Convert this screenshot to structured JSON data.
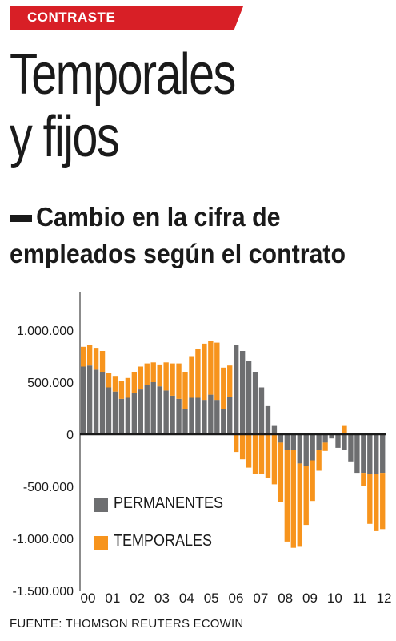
{
  "header": {
    "tag": "CONTRASTE",
    "title": "Temporales\ny fijos",
    "subtitle": "Cambio en la cifra de empleados según el contrato"
  },
  "source": "FUENTE: THOMSON REUTERS ECOWIN",
  "colors": {
    "tag": "#d81f26",
    "permanentes": "#6d6e70",
    "temporales": "#f7941d"
  },
  "chart_data": {
    "type": "bar",
    "stacked": true,
    "title": "",
    "xlabel": "",
    "ylabel": "",
    "ylim": [
      -1500000,
      1300000
    ],
    "yticks": [
      1000000,
      500000,
      0,
      -500000,
      -1000000,
      -1500000
    ],
    "ytick_labels": [
      "1.000.000",
      "500.000",
      "0",
      "-500.000",
      "-1.000.000",
      "-1.500.000"
    ],
    "xtick_labels": [
      "00",
      "01",
      "02",
      "03",
      "04",
      "05",
      "06",
      "07",
      "08",
      "09",
      "10",
      "11",
      "12"
    ],
    "legend": [
      "PERMANENTES",
      "TEMPORALES"
    ],
    "legend_position": "bottom-left",
    "grid": false,
    "series": [
      {
        "name": "PERMANENTES",
        "values": [
          650000,
          660000,
          620000,
          600000,
          450000,
          410000,
          340000,
          350000,
          400000,
          430000,
          470000,
          500000,
          460000,
          420000,
          370000,
          340000,
          240000,
          350000,
          350000,
          330000,
          380000,
          330000,
          240000,
          360000,
          860000,
          800000,
          700000,
          600000,
          450000,
          270000,
          80000,
          -80000,
          -150000,
          -150000,
          -280000,
          -300000,
          -250000,
          -150000,
          -80000,
          -40000,
          -130000,
          -150000,
          -260000,
          -370000,
          -370000,
          -380000,
          -380000,
          -370000
        ]
      },
      {
        "name": "TEMPORALES",
        "values": [
          190000,
          200000,
          210000,
          200000,
          140000,
          150000,
          170000,
          190000,
          200000,
          220000,
          210000,
          190000,
          210000,
          270000,
          310000,
          340000,
          360000,
          400000,
          470000,
          540000,
          520000,
          550000,
          400000,
          300000,
          -170000,
          -240000,
          -320000,
          -380000,
          -380000,
          -420000,
          -480000,
          -570000,
          -880000,
          -940000,
          -800000,
          -570000,
          -390000,
          -200000,
          -80000,
          0,
          0,
          80000,
          0,
          0,
          -130000,
          -480000,
          -550000,
          -540000
        ]
      }
    ]
  }
}
